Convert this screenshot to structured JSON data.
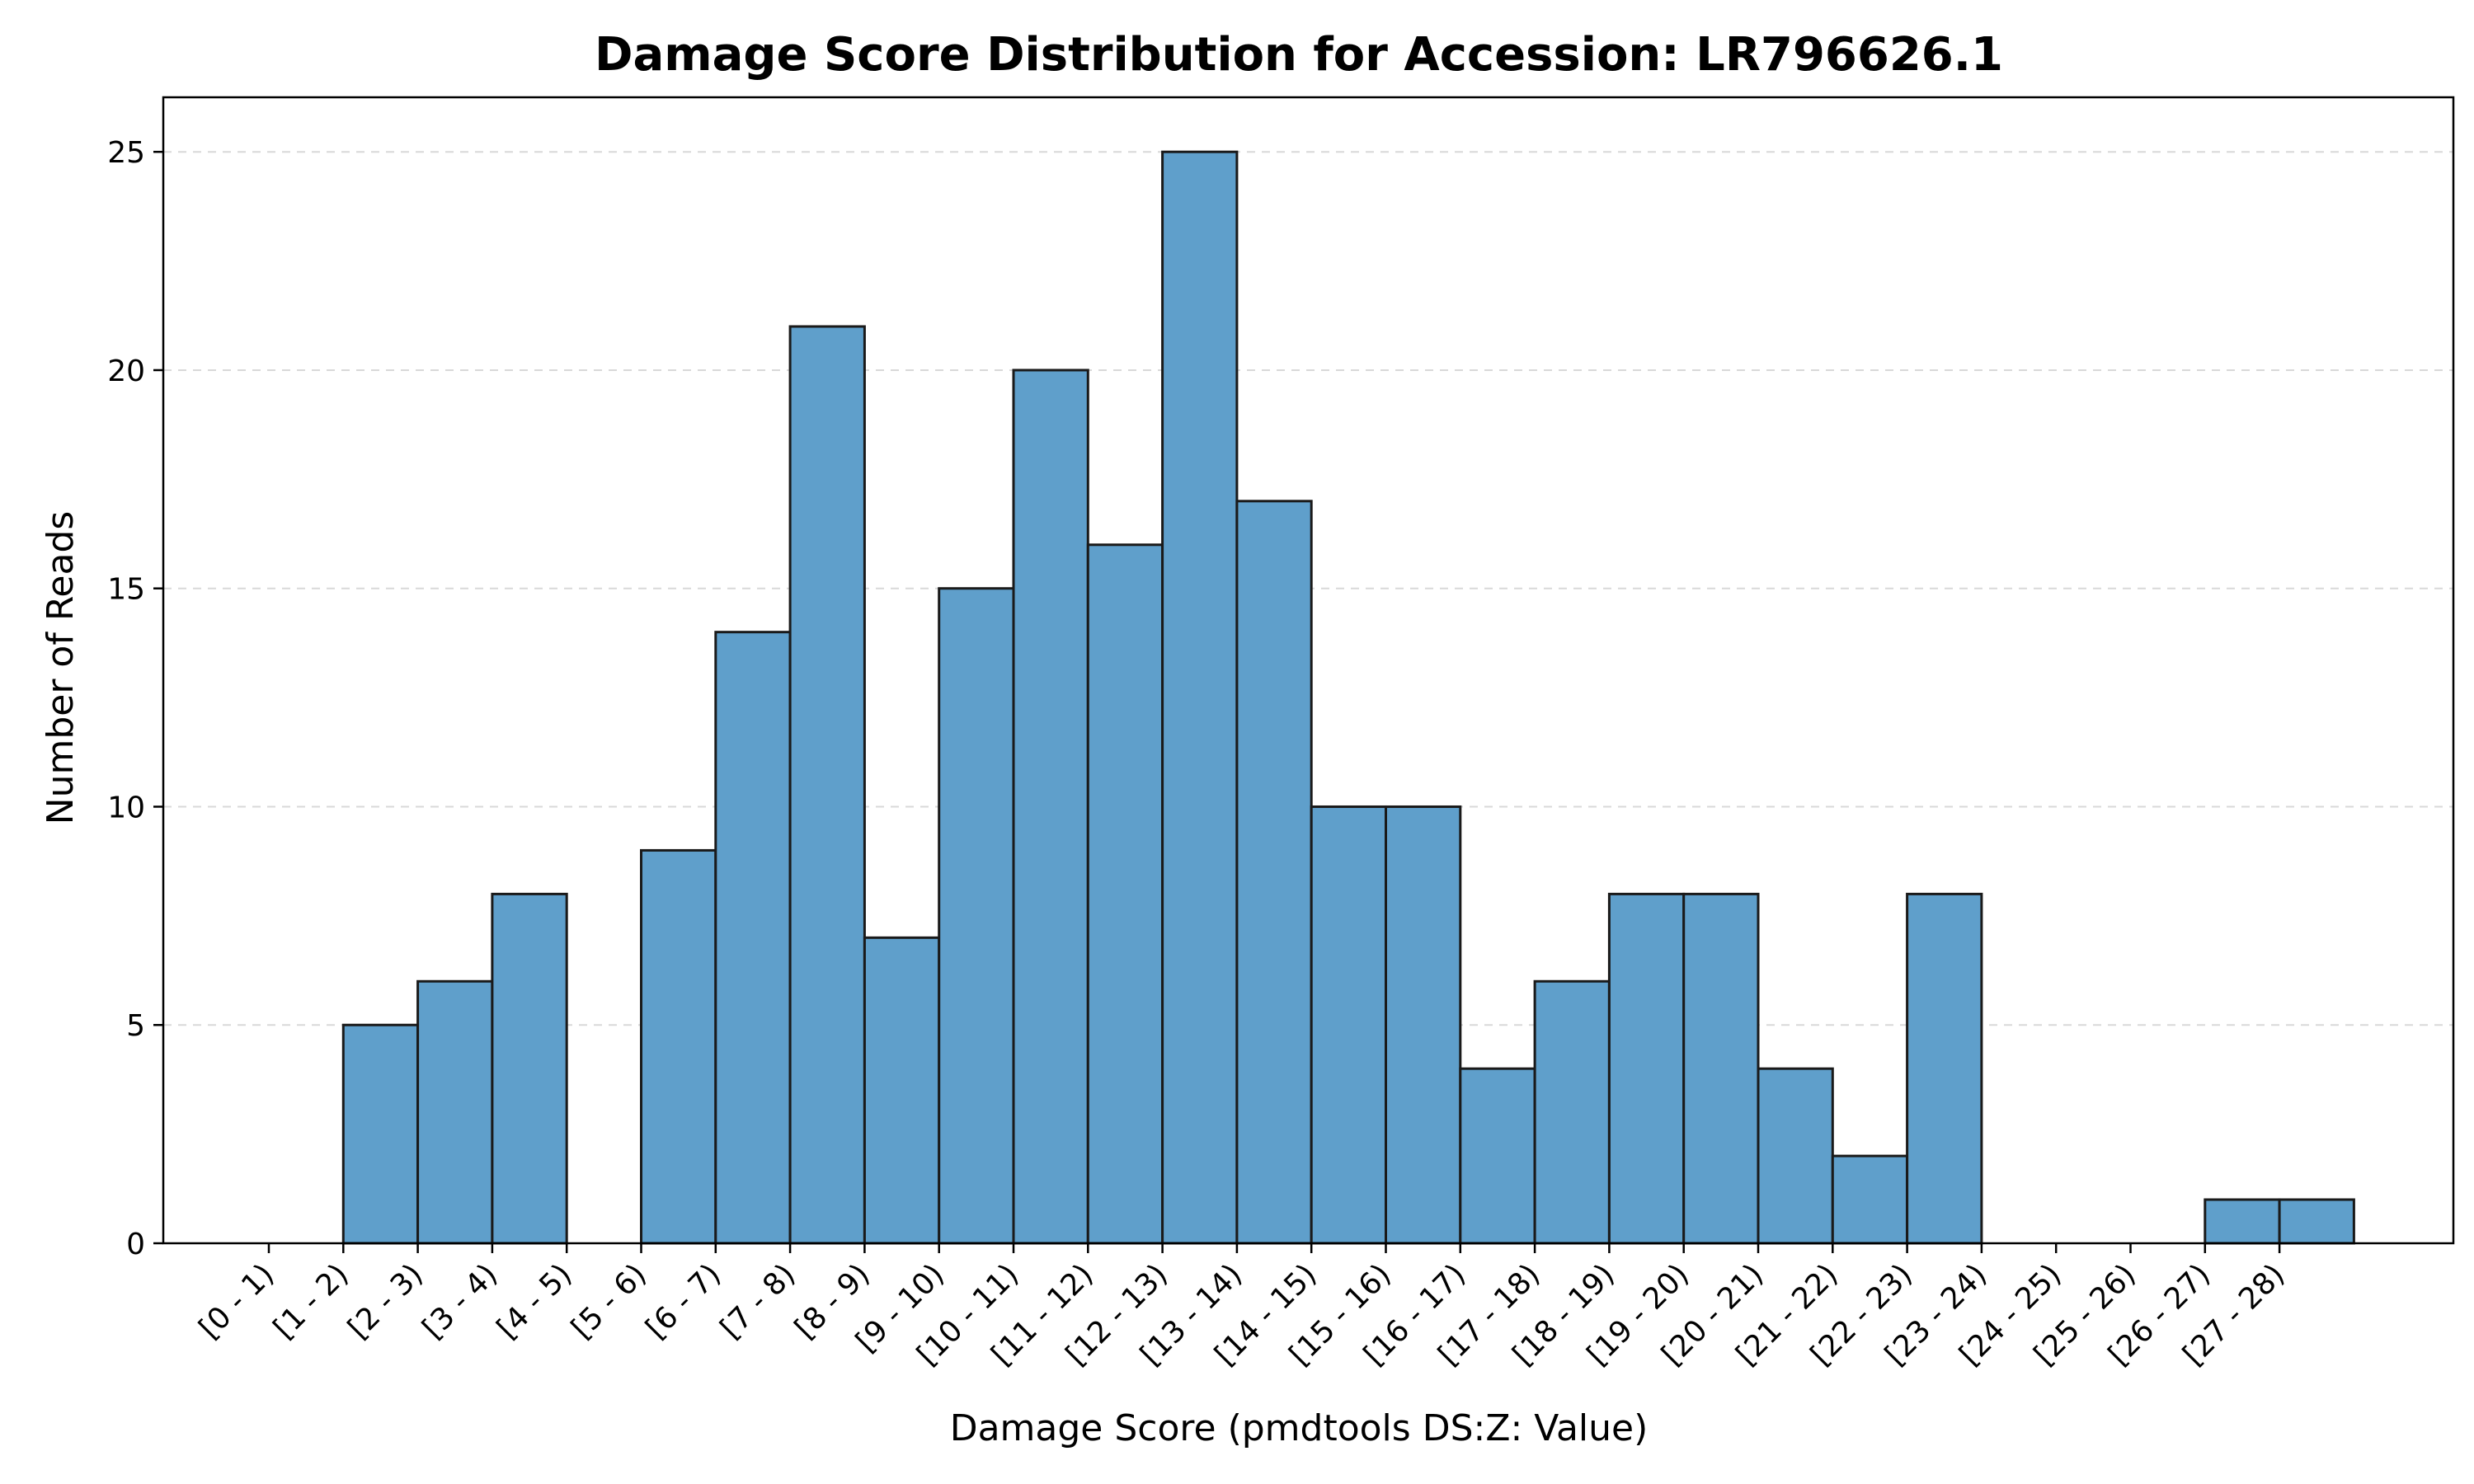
{
  "chart_data": {
    "type": "bar",
    "title": "Damage Score Distribution for Accession: LR796626.1",
    "xlabel": "Damage Score (pmdtools DS:Z: Value)",
    "ylabel": "Number of Reads",
    "categories": [
      "[0 - 1)",
      "[1 - 2)",
      "[2 - 3)",
      "[3 - 4)",
      "[4 - 5)",
      "[5 - 6)",
      "[6 - 7)",
      "[7 - 8)",
      "[8 - 9)",
      "[9 - 10)",
      "[10 - 11)",
      "[11 - 12)",
      "[12 - 13)",
      "[13 - 14)",
      "[14 - 15)",
      "[15 - 16)",
      "[16 - 17)",
      "[17 - 18)",
      "[18 - 19)",
      "[19 - 20)",
      "[20 - 21)",
      "[21 - 22)",
      "[22 - 23)",
      "[23 - 24)",
      "[24 - 25)",
      "[25 - 26)",
      "[26 - 27)",
      "[27 - 28)"
    ],
    "values": [
      0,
      5,
      6,
      8,
      0,
      9,
      14,
      21,
      7,
      15,
      20,
      16,
      25,
      17,
      10,
      10,
      4,
      6,
      8,
      8,
      4,
      2,
      8,
      0,
      0,
      0,
      1,
      1
    ],
    "ylim": [
      0,
      26.25
    ],
    "yticks": [
      0,
      5,
      10,
      15,
      20,
      25
    ],
    "grid": "y-dashed",
    "colors": {
      "bar_fill": "#5f9fcb",
      "bar_edge": "#1a1a1a",
      "grid": "#cccccc"
    }
  }
}
